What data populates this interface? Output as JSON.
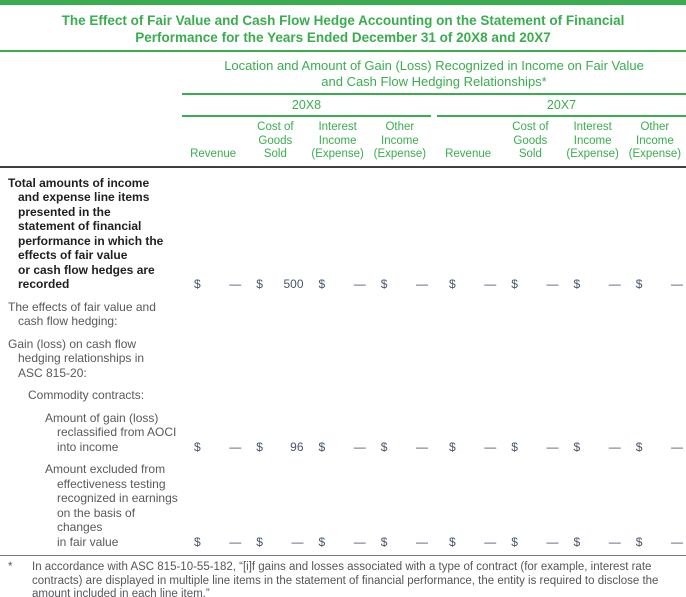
{
  "colors": {
    "accent_green": "#3aad4e",
    "header_rule_dark": "#3f4042",
    "divider_gray": "#77787b",
    "bottom_rule_gray": "#b3bac0",
    "label_gray": "#58595b",
    "label_bold_black": "#1f1f1f",
    "value_slate": "#48566b"
  },
  "title": "The Effect of Fair Value and Cash Flow Hedge Accounting on the Statement of Financial\nPerformance for the Years Ended December 31 of 20X8 and 20X7",
  "table": {
    "span_header": "Location and Amount of Gain (Loss) Recognized in Income on Fair Value\nand Cash Flow Hedging Relationships*",
    "year_groups": [
      "20X8",
      "20X7"
    ],
    "column_headers": [
      "Revenue",
      "Cost of\nGoods\nSold",
      "Interest\nIncome\n(Expense)",
      "Other\nIncome\n(Expense)"
    ],
    "currency_symbol": "$",
    "rows": [
      {
        "label": "Total amounts of income\nand expense line items\npresented in the\nstatement of financial\nperformance in which the\neffects of fair value\nor cash flow hedges are\nrecorded",
        "bold": true,
        "indent": 0,
        "values": [
          "—",
          "500",
          "—",
          "—",
          "—",
          "—",
          "—",
          "—"
        ]
      },
      {
        "label": "The effects of fair value and\ncash flow hedging:",
        "bold": false,
        "indent": 0,
        "values": null
      },
      {
        "label": "Gain (loss) on cash flow\nhedging relationships in\nASC 815-20:",
        "bold": false,
        "indent": 0,
        "values": null
      },
      {
        "label": "Commodity contracts:",
        "bold": false,
        "indent": 1,
        "values": null
      },
      {
        "label": "Amount of gain (loss)\nreclassified from AOCI\ninto income",
        "bold": false,
        "indent": 2,
        "values": [
          "—",
          "96",
          "—",
          "—",
          "—",
          "—",
          "—",
          "—"
        ]
      },
      {
        "label": "Amount excluded from\neffectiveness testing\nrecognized in earnings\non the basis of changes\nin fair value",
        "bold": false,
        "indent": 2,
        "values": [
          "—",
          "—",
          "—",
          "—",
          "—",
          "—",
          "—",
          "—"
        ]
      }
    ]
  },
  "footnote": {
    "marker": "*",
    "text": "In accordance with ASC 815-10-55-182, “[i]f gains and losses associated with a type of contract (for example, interest rate contracts) are displayed in multiple line items in the statement of financial performance, the entity is required to disclose the amount included in each line item.”"
  }
}
